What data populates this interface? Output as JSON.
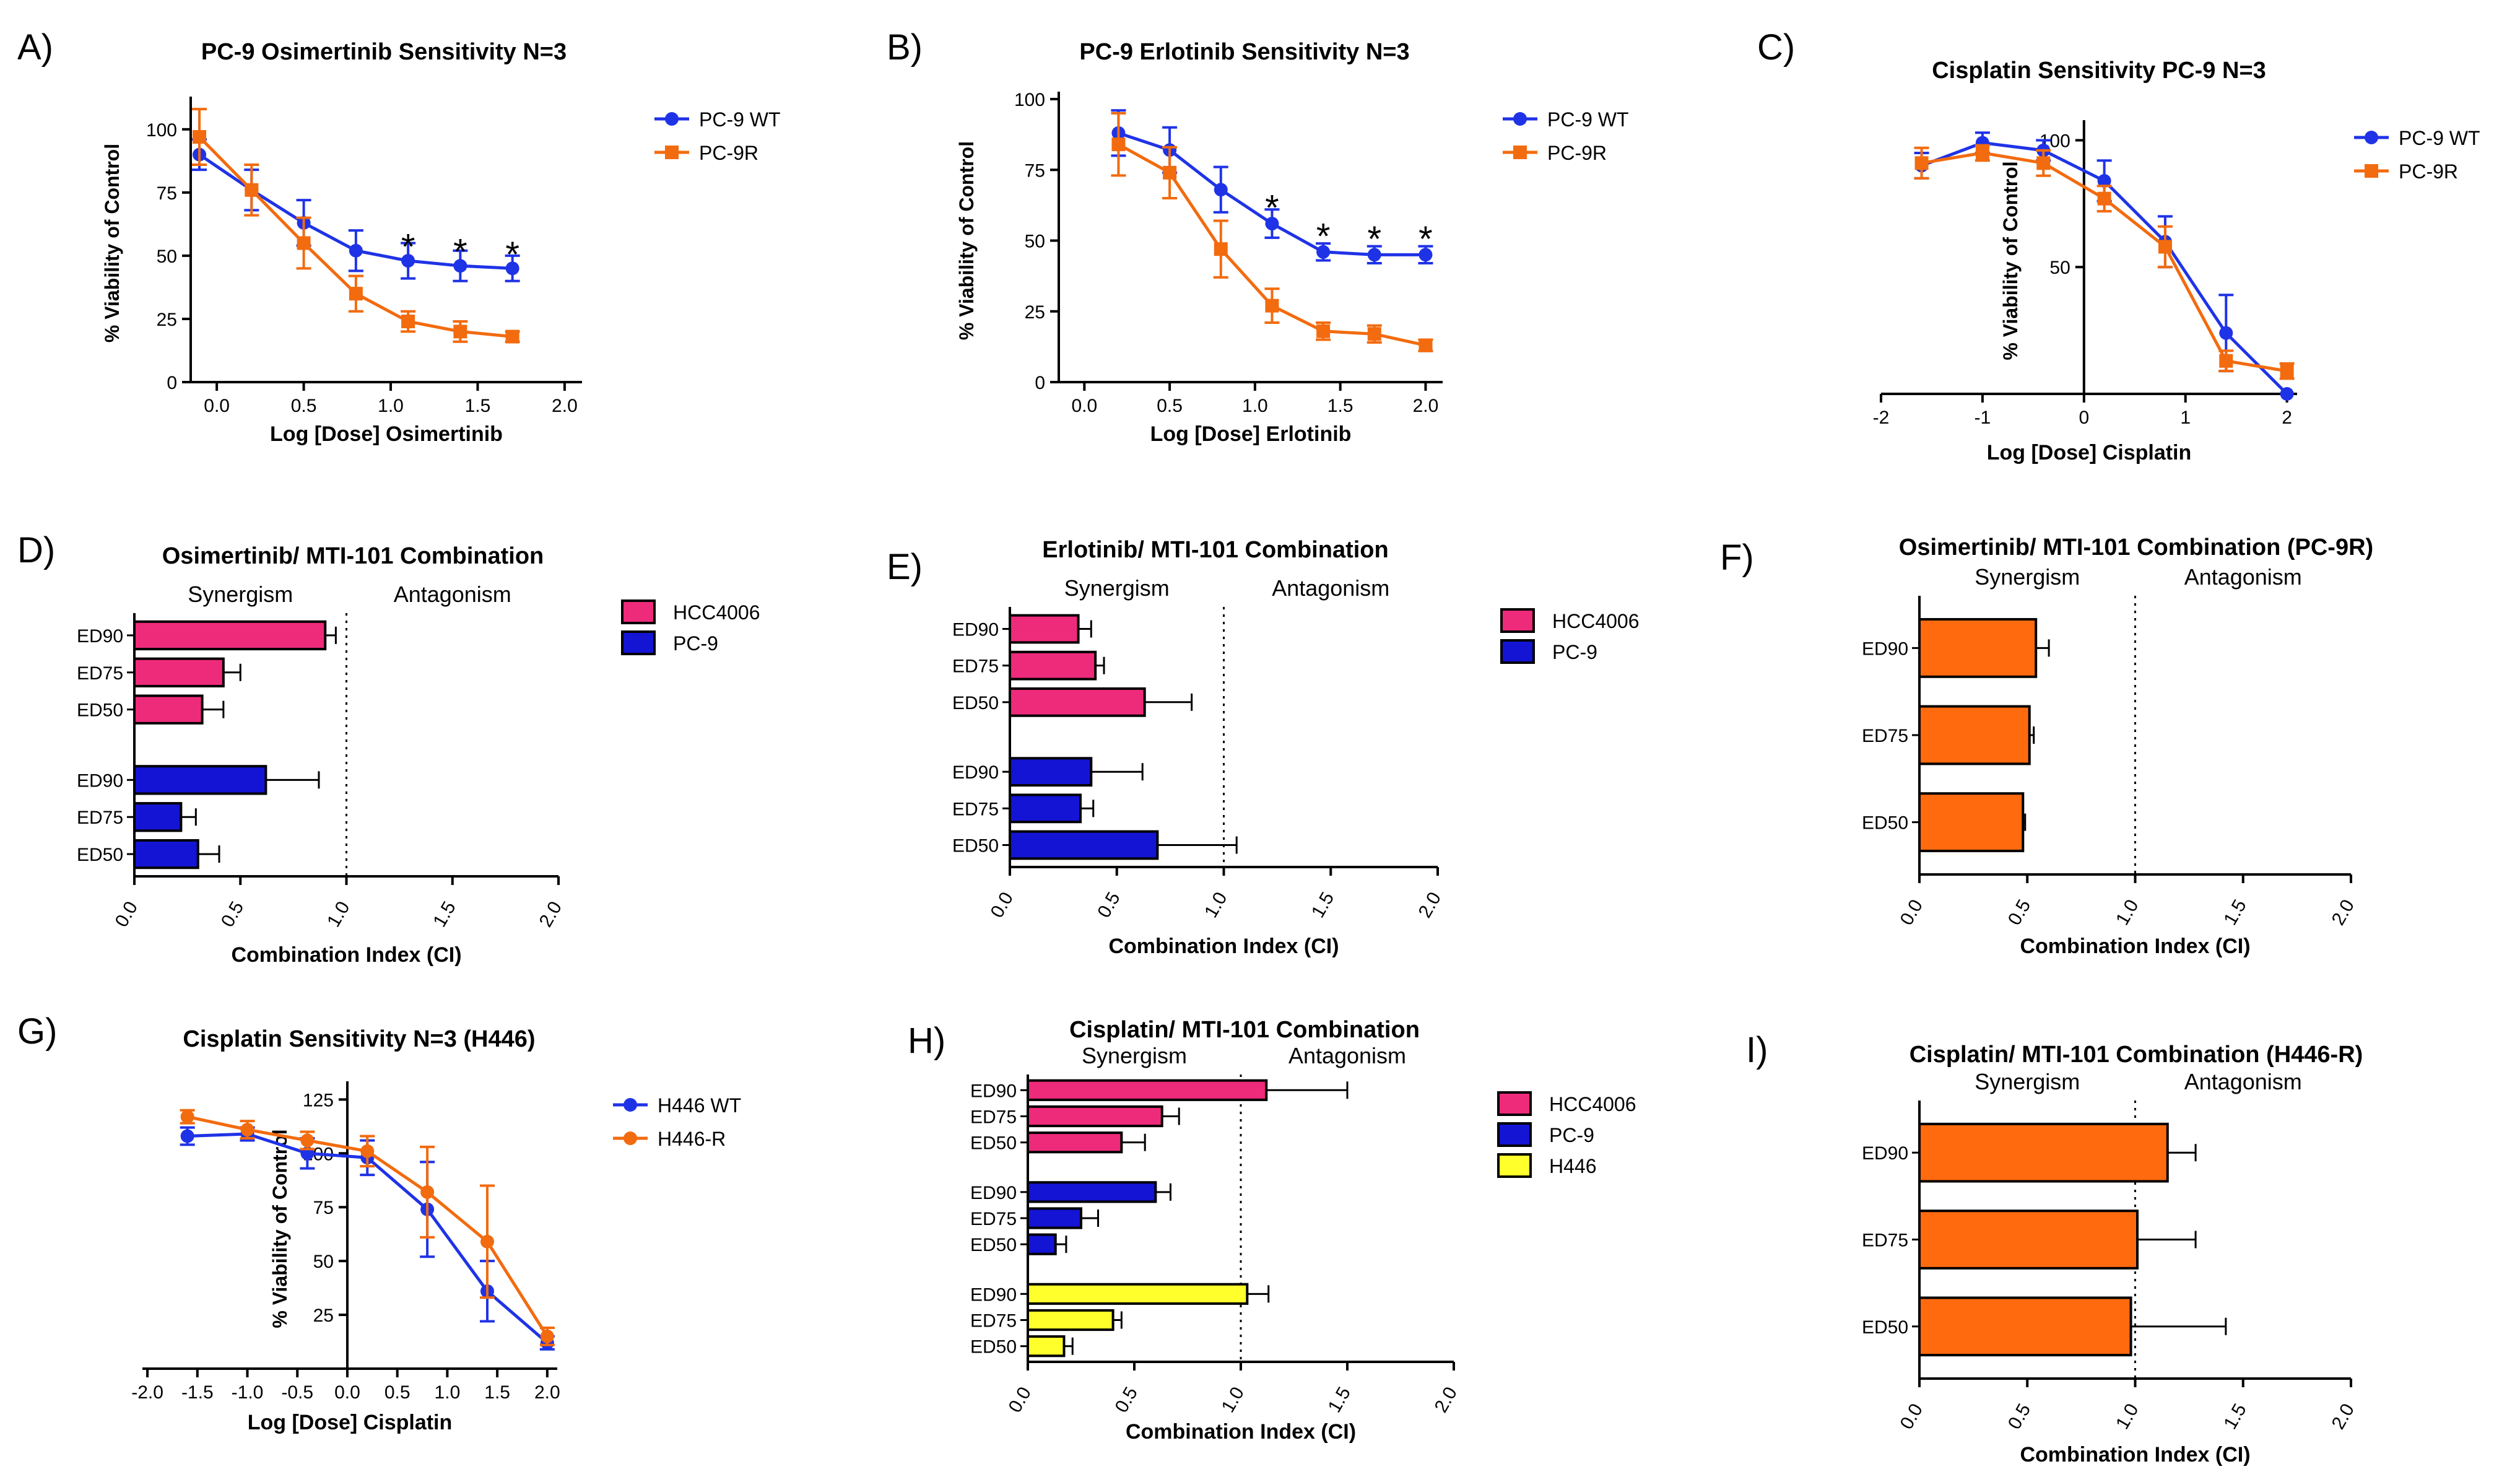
{
  "colors": {
    "blue": "#1f33e6",
    "orange": "#f26b0f",
    "pink": "#ee2a7b",
    "bar_blue": "#1414d4",
    "yellow": "#ffff2b",
    "bar_orange": "#ff6a0f",
    "axis": "#000000"
  },
  "chart_data": [
    {
      "id": "A",
      "panel_label": "A)",
      "type": "line",
      "title": "PC-9 Osimertinib Sensitivity N=3",
      "xlabel": "Log [Dose] Osimertinib",
      "ylabel": "% Viability of Control",
      "xlim": [
        -0.15,
        2.1
      ],
      "ylim": [
        0,
        110
      ],
      "x_axis_at": 0,
      "y_axis_at": -0.15,
      "xticks": [
        0.0,
        0.5,
        1.0,
        1.5,
        2.0
      ],
      "xtick_labels": [
        "0.0",
        "0.5",
        "1.0",
        "1.5",
        "2.0"
      ],
      "yticks": [
        0,
        25,
        50,
        75,
        100
      ],
      "ytick_labels": [
        "0",
        "25",
        "50",
        "75",
        "100"
      ],
      "series": [
        {
          "name": "PC-9 WT",
          "color": "#1f33e6",
          "marker": "circle",
          "x": [
            -0.1,
            0.2,
            0.5,
            0.8,
            1.1,
            1.4,
            1.7
          ],
          "y": [
            90,
            76,
            63,
            52,
            48,
            46,
            45
          ],
          "err": [
            6,
            8,
            9,
            8,
            7,
            6,
            5
          ]
        },
        {
          "name": "PC-9R",
          "color": "#f26b0f",
          "marker": "square",
          "x": [
            -0.1,
            0.2,
            0.5,
            0.8,
            1.1,
            1.4,
            1.7
          ],
          "y": [
            97,
            76,
            55,
            35,
            24,
            20,
            18
          ],
          "err": [
            11,
            10,
            10,
            7,
            4,
            4,
            2
          ]
        }
      ],
      "annotations": [
        {
          "text": "*",
          "x": 1.1,
          "y": 54
        },
        {
          "text": "*",
          "x": 1.4,
          "y": 52
        },
        {
          "text": "*",
          "x": 1.7,
          "y": 51
        }
      ]
    },
    {
      "id": "B",
      "panel_label": "B)",
      "type": "line",
      "title": "PC-9 Erlotinib Sensitivity N=3",
      "xlabel": "Log [Dose] Erlotinib",
      "ylabel": "% Viability of Control",
      "xlim": [
        -0.15,
        2.1
      ],
      "ylim": [
        0,
        100
      ],
      "x_axis_at": 0,
      "y_axis_at": -0.15,
      "xticks": [
        0.0,
        0.5,
        1.0,
        1.5,
        2.0
      ],
      "xtick_labels": [
        "0.0",
        "0.5",
        "1.0",
        "1.5",
        "2.0"
      ],
      "yticks": [
        0,
        25,
        50,
        75,
        100
      ],
      "ytick_labels": [
        "0",
        "25",
        "50",
        "75",
        "100"
      ],
      "series": [
        {
          "name": "PC-9 WT",
          "color": "#1f33e6",
          "marker": "circle",
          "x": [
            0.2,
            0.5,
            0.8,
            1.1,
            1.4,
            1.7,
            2.0
          ],
          "y": [
            88,
            82,
            68,
            56,
            46,
            45,
            45
          ],
          "err": [
            8,
            8,
            8,
            5,
            3,
            3,
            3
          ]
        },
        {
          "name": "PC-9R",
          "color": "#f26b0f",
          "marker": "square",
          "x": [
            0.2,
            0.5,
            0.8,
            1.1,
            1.4,
            1.7,
            2.0
          ],
          "y": [
            84,
            74,
            47,
            27,
            18,
            17,
            13
          ],
          "err": [
            11,
            9,
            10,
            6,
            3,
            3,
            2
          ]
        }
      ],
      "annotations": [
        {
          "text": "*",
          "x": 1.1,
          "y": 62
        },
        {
          "text": "*",
          "x": 1.4,
          "y": 52
        },
        {
          "text": "*",
          "x": 1.7,
          "y": 51
        },
        {
          "text": "*",
          "x": 2.0,
          "y": 51
        }
      ]
    },
    {
      "id": "C",
      "panel_label": "C)",
      "type": "line",
      "title": "Cisplatin Sensitivity PC-9 N=3",
      "xlabel": "Log [Dose] Cisplatin",
      "ylabel": "% Viability of Control",
      "xlim": [
        -2.0,
        2.1
      ],
      "ylim": [
        0,
        105
      ],
      "x_axis_at": 0,
      "y_axis_at": 0,
      "xticks": [
        -2,
        -1,
        0,
        1,
        2
      ],
      "xtick_labels": [
        "-2",
        "-1",
        "0",
        "1",
        "2"
      ],
      "yticks": [
        50,
        100
      ],
      "ytick_labels": [
        "50",
        "100"
      ],
      "series": [
        {
          "name": "PC-9 WT",
          "color": "#1f33e6",
          "marker": "circle",
          "x": [
            -1.6,
            -1.0,
            -0.4,
            0.2,
            0.8,
            1.4,
            2.0
          ],
          "y": [
            90,
            99,
            96,
            84,
            60,
            24,
            0
          ],
          "err": [
            5,
            4,
            4,
            8,
            10,
            15,
            0
          ]
        },
        {
          "name": "PC-9R",
          "color": "#f26b0f",
          "marker": "square",
          "x": [
            -1.6,
            -1.0,
            -0.4,
            0.2,
            0.8,
            1.4,
            2.0
          ],
          "y": [
            91,
            95,
            91,
            77,
            58,
            13,
            9
          ],
          "err": [
            6,
            3,
            5,
            5,
            8,
            4,
            3
          ]
        }
      ],
      "annotations": []
    },
    {
      "id": "D",
      "panel_label": "D)",
      "type": "bar",
      "orientation": "horizontal",
      "title": "Osimertinib/ MTI-101 Combination",
      "xlabel": "Combination Index (CI)",
      "xlim": [
        0,
        2
      ],
      "xticks": [
        0.0,
        0.5,
        1.0,
        1.5,
        2.0
      ],
      "xtick_labels": [
        "0.0",
        "0.5",
        "1.0",
        "1.5",
        "2.0"
      ],
      "threshold": 1.0,
      "region_labels": [
        "Synergism",
        "Antagonism"
      ],
      "categories": [
        "ED90",
        "ED75",
        "ED50",
        "ED90",
        "ED75",
        "ED50"
      ],
      "values": [
        0.9,
        0.42,
        0.32,
        0.62,
        0.22,
        0.3
      ],
      "errors": [
        0.05,
        0.08,
        0.1,
        0.25,
        0.07,
        0.1
      ],
      "bar_series": [
        0,
        0,
        0,
        1,
        1,
        1
      ],
      "series": [
        {
          "name": "HCC4006",
          "color": "#ee2a7b"
        },
        {
          "name": "PC-9",
          "color": "#1414d4"
        }
      ]
    },
    {
      "id": "E",
      "panel_label": "E)",
      "type": "bar",
      "orientation": "horizontal",
      "title": "Erlotinib/ MTI-101 Combination",
      "xlabel": "Combination Index (CI)",
      "xlim": [
        0,
        2
      ],
      "xticks": [
        0.0,
        0.5,
        1.0,
        1.5,
        2.0
      ],
      "xtick_labels": [
        "0.0",
        "0.5",
        "1.0",
        "1.5",
        "2.0"
      ],
      "threshold": 1.0,
      "region_labels": [
        "Synergism",
        "Antagonism"
      ],
      "categories": [
        "ED90",
        "ED75",
        "ED50",
        "ED90",
        "ED75",
        "ED50"
      ],
      "values": [
        0.32,
        0.4,
        0.63,
        0.38,
        0.33,
        0.69
      ],
      "errors": [
        0.06,
        0.04,
        0.22,
        0.24,
        0.06,
        0.37
      ],
      "bar_series": [
        0,
        0,
        0,
        1,
        1,
        1
      ],
      "series": [
        {
          "name": "HCC4006",
          "color": "#ee2a7b"
        },
        {
          "name": "PC-9",
          "color": "#1414d4"
        }
      ]
    },
    {
      "id": "F",
      "panel_label": "F)",
      "type": "bar",
      "orientation": "horizontal",
      "title": "Osimertinib/ MTI-101 Combination (PC-9R)",
      "xlabel": "Combination Index (CI)",
      "xlim": [
        0,
        2
      ],
      "xticks": [
        0.0,
        0.5,
        1.0,
        1.5,
        2.0
      ],
      "xtick_labels": [
        "0.0",
        "0.5",
        "1.0",
        "1.5",
        "2.0"
      ],
      "threshold": 1.0,
      "region_labels": [
        "Synergism",
        "Antagonism"
      ],
      "categories": [
        "ED90",
        "ED75",
        "ED50"
      ],
      "values": [
        0.54,
        0.51,
        0.48
      ],
      "errors": [
        0.06,
        0.02,
        0.01
      ],
      "bar_series": [
        0,
        0,
        0
      ],
      "series": [
        {
          "name": "PC-9R",
          "color": "#ff6a0f"
        }
      ]
    },
    {
      "id": "G",
      "panel_label": "G)",
      "type": "line",
      "title": "Cisplatin Sensitivity N=3 (H446)",
      "xlabel": "Log [Dose] Cisplatin",
      "ylabel": "% Viability of Control",
      "xlim": [
        -2.05,
        2.1
      ],
      "ylim": [
        0,
        130
      ],
      "x_axis_at": 0,
      "y_axis_at": 0,
      "xticks": [
        -2.0,
        -1.5,
        -1.0,
        -0.5,
        0.0,
        0.5,
        1.0,
        1.5,
        2.0
      ],
      "xtick_labels": [
        "-2.0",
        "-1.5",
        "-1.0",
        "-0.5",
        "0.0",
        "0.5",
        "1.0",
        "1.5",
        "2.0"
      ],
      "yticks": [
        25,
        50,
        75,
        100,
        125
      ],
      "ytick_labels": [
        "25",
        "50",
        "75",
        "100",
        "125"
      ],
      "series": [
        {
          "name": "H446 WT",
          "color": "#1f33e6",
          "marker": "circle",
          "x": [
            -1.6,
            -1.0,
            -0.4,
            0.2,
            0.8,
            1.4,
            2.0
          ],
          "y": [
            108,
            109,
            100,
            98,
            74,
            36,
            12
          ],
          "err": [
            4,
            3,
            7,
            8,
            22,
            14,
            3
          ]
        },
        {
          "name": "H446-R",
          "color": "#f26b0f",
          "marker": "circle",
          "x": [
            -1.6,
            -1.0,
            -0.4,
            0.2,
            0.8,
            1.4,
            2.0
          ],
          "y": [
            117,
            111,
            106,
            101,
            82,
            59,
            15
          ],
          "err": [
            3,
            4,
            4,
            7,
            21,
            26,
            4
          ]
        }
      ],
      "annotations": []
    },
    {
      "id": "H",
      "panel_label": "H)",
      "type": "bar",
      "orientation": "horizontal",
      "title": "Cisplatin/ MTI-101 Combination",
      "xlabel": "Combination Index (CI)",
      "xlim": [
        0,
        2
      ],
      "xticks": [
        0.0,
        0.5,
        1.0,
        1.5,
        2.0
      ],
      "xtick_labels": [
        "0.0",
        "0.5",
        "1.0",
        "1.5",
        "2.0"
      ],
      "threshold": 1.0,
      "region_labels": [
        "Synergism",
        "Antagonism"
      ],
      "categories": [
        "ED90",
        "ED75",
        "ED50",
        "ED90",
        "ED75",
        "ED50",
        "ED90",
        "ED75",
        "ED50"
      ],
      "values": [
        1.12,
        0.63,
        0.44,
        0.6,
        0.25,
        0.13,
        1.03,
        0.4,
        0.17
      ],
      "errors": [
        0.38,
        0.08,
        0.11,
        0.07,
        0.08,
        0.05,
        0.1,
        0.04,
        0.04
      ],
      "bar_series": [
        0,
        0,
        0,
        1,
        1,
        1,
        2,
        2,
        2
      ],
      "series": [
        {
          "name": "HCC4006",
          "color": "#ee2a7b"
        },
        {
          "name": "PC-9",
          "color": "#1414d4"
        },
        {
          "name": "H446",
          "color": "#ffff2b"
        }
      ]
    },
    {
      "id": "I",
      "panel_label": "I)",
      "type": "bar",
      "orientation": "horizontal",
      "title": "Cisplatin/ MTI-101 Combination (H446-R)",
      "xlabel": "Combination Index (CI)",
      "xlim": [
        0,
        2
      ],
      "xticks": [
        0.0,
        0.5,
        1.0,
        1.5,
        2.0
      ],
      "xtick_labels": [
        "0.0",
        "0.5",
        "1.0",
        "1.5",
        "2.0"
      ],
      "threshold": 1.0,
      "region_labels": [
        "Synergism",
        "Antagonism"
      ],
      "categories": [
        "ED90",
        "ED75",
        "ED50"
      ],
      "values": [
        1.15,
        1.01,
        0.98
      ],
      "errors": [
        0.13,
        0.27,
        0.44
      ],
      "bar_series": [
        0,
        0,
        0
      ],
      "series": [
        {
          "name": "H446-R",
          "color": "#ff6a0f"
        }
      ]
    }
  ]
}
